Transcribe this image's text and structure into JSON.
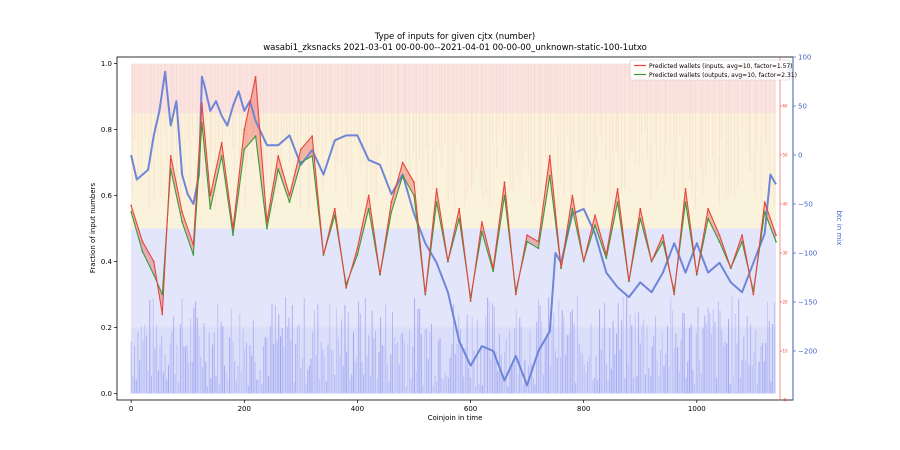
{
  "chart_data": {
    "type": "line",
    "title": "Type of inputs for given cjtx (number)",
    "subtitle": "wasabi1_zksnacks 2021-03-01 00-00-00--2021-04-01 00-00-00_unknown-static-100-1utxo",
    "xlabel": "Coinjoin in time",
    "ylabel": "Fraction of input numbers",
    "ylabel_right": "btc in mix",
    "xlim": [
      -25,
      1170
    ],
    "ylim": [
      -0.02,
      1.02
    ],
    "ylim_right": [
      -250,
      100
    ],
    "ylim_inner": [
      0,
      70
    ],
    "x_ticks": [
      0,
      200,
      400,
      600,
      800,
      1000
    ],
    "y_ticks": [
      "0.0",
      "0.2",
      "0.4",
      "0.6",
      "0.8",
      "1.0"
    ],
    "y_ticks_right": [
      "100",
      "50",
      "0",
      "−50",
      "−100",
      "−150",
      "−200"
    ],
    "y_ticks_inner": [
      "60",
      "50",
      "40",
      "30",
      "20",
      "10",
      "0"
    ],
    "legend": {
      "position": "top-right",
      "entries": [
        {
          "label": "Predicted wallets (inputs, avg=10, factor=1.57)",
          "color": "#e8453c"
        },
        {
          "label": "Predicted wallets (outputs, avg=10, factor=2.31)",
          "color": "#3a9a3a"
        }
      ]
    },
    "series": [
      {
        "name": "Predicted wallets (inputs, avg=10, factor=1.57)",
        "color": "#e8453c",
        "x": [
          0,
          20,
          40,
          55,
          70,
          90,
          110,
          125,
          140,
          160,
          180,
          200,
          220,
          240,
          260,
          280,
          300,
          320,
          340,
          360,
          380,
          400,
          420,
          440,
          460,
          480,
          500,
          520,
          540,
          560,
          580,
          600,
          620,
          640,
          660,
          680,
          700,
          720,
          740,
          760,
          780,
          800,
          820,
          840,
          860,
          880,
          900,
          920,
          940,
          960,
          980,
          1000,
          1020,
          1040,
          1060,
          1080,
          1100,
          1120,
          1140
        ],
        "values": [
          0.57,
          0.46,
          0.4,
          0.24,
          0.72,
          0.55,
          0.45,
          0.88,
          0.6,
          0.76,
          0.5,
          0.8,
          0.96,
          0.52,
          0.72,
          0.6,
          0.74,
          0.78,
          0.42,
          0.56,
          0.32,
          0.44,
          0.6,
          0.36,
          0.58,
          0.7,
          0.64,
          0.3,
          0.62,
          0.4,
          0.56,
          0.28,
          0.52,
          0.38,
          0.64,
          0.3,
          0.48,
          0.46,
          0.72,
          0.38,
          0.6,
          0.4,
          0.54,
          0.42,
          0.62,
          0.34,
          0.56,
          0.4,
          0.48,
          0.3,
          0.62,
          0.36,
          0.56,
          0.48,
          0.38,
          0.48,
          0.3,
          0.58,
          0.48
        ]
      },
      {
        "name": "Predicted wallets (outputs, avg=10, factor=2.31)",
        "color": "#3a9a3a",
        "x": [
          0,
          20,
          40,
          55,
          70,
          90,
          110,
          125,
          140,
          160,
          180,
          200,
          220,
          240,
          260,
          280,
          300,
          320,
          340,
          360,
          380,
          400,
          420,
          440,
          460,
          480,
          500,
          520,
          540,
          560,
          580,
          600,
          620,
          640,
          660,
          680,
          700,
          720,
          740,
          760,
          780,
          800,
          820,
          840,
          860,
          880,
          900,
          920,
          940,
          960,
          980,
          1000,
          1020,
          1040,
          1060,
          1080,
          1100,
          1120,
          1140
        ],
        "values": [
          0.55,
          0.43,
          0.36,
          0.3,
          0.68,
          0.52,
          0.42,
          0.82,
          0.56,
          0.72,
          0.48,
          0.74,
          0.78,
          0.5,
          0.68,
          0.58,
          0.7,
          0.72,
          0.42,
          0.54,
          0.33,
          0.42,
          0.56,
          0.36,
          0.55,
          0.66,
          0.6,
          0.3,
          0.58,
          0.4,
          0.53,
          0.29,
          0.49,
          0.37,
          0.6,
          0.31,
          0.46,
          0.44,
          0.66,
          0.38,
          0.56,
          0.4,
          0.51,
          0.41,
          0.58,
          0.34,
          0.53,
          0.4,
          0.46,
          0.31,
          0.58,
          0.36,
          0.53,
          0.46,
          0.38,
          0.46,
          0.31,
          0.55,
          0.46
        ]
      },
      {
        "name": "",
        "axis": "right",
        "color": "#6f86d8",
        "x": [
          0,
          10,
          20,
          30,
          40,
          50,
          60,
          70,
          80,
          90,
          100,
          110,
          120,
          125,
          130,
          140,
          150,
          160,
          170,
          180,
          190,
          200,
          210,
          220,
          240,
          260,
          280,
          300,
          320,
          340,
          360,
          380,
          400,
          420,
          440,
          460,
          480,
          500,
          520,
          540,
          560,
          580,
          600,
          620,
          640,
          660,
          680,
          700,
          720,
          740,
          750,
          760,
          780,
          800,
          820,
          840,
          860,
          880,
          900,
          920,
          940,
          960,
          980,
          1000,
          1020,
          1040,
          1060,
          1080,
          1100,
          1120,
          1130,
          1140
        ],
        "values": [
          0,
          -25,
          -20,
          -15,
          20,
          45,
          85,
          30,
          55,
          -20,
          -40,
          -50,
          -20,
          80,
          70,
          45,
          55,
          40,
          30,
          50,
          65,
          45,
          55,
          35,
          10,
          10,
          20,
          -10,
          5,
          -20,
          15,
          20,
          20,
          -5,
          -10,
          -40,
          -20,
          -60,
          -90,
          -110,
          -140,
          -190,
          -215,
          -195,
          -200,
          -230,
          -205,
          -235,
          -200,
          -180,
          -100,
          -110,
          -60,
          -55,
          -80,
          -120,
          -135,
          -145,
          -130,
          -140,
          -120,
          -90,
          -120,
          -90,
          -120,
          -110,
          -130,
          -140,
          -110,
          -80,
          -20,
          -30
        ]
      }
    ]
  }
}
